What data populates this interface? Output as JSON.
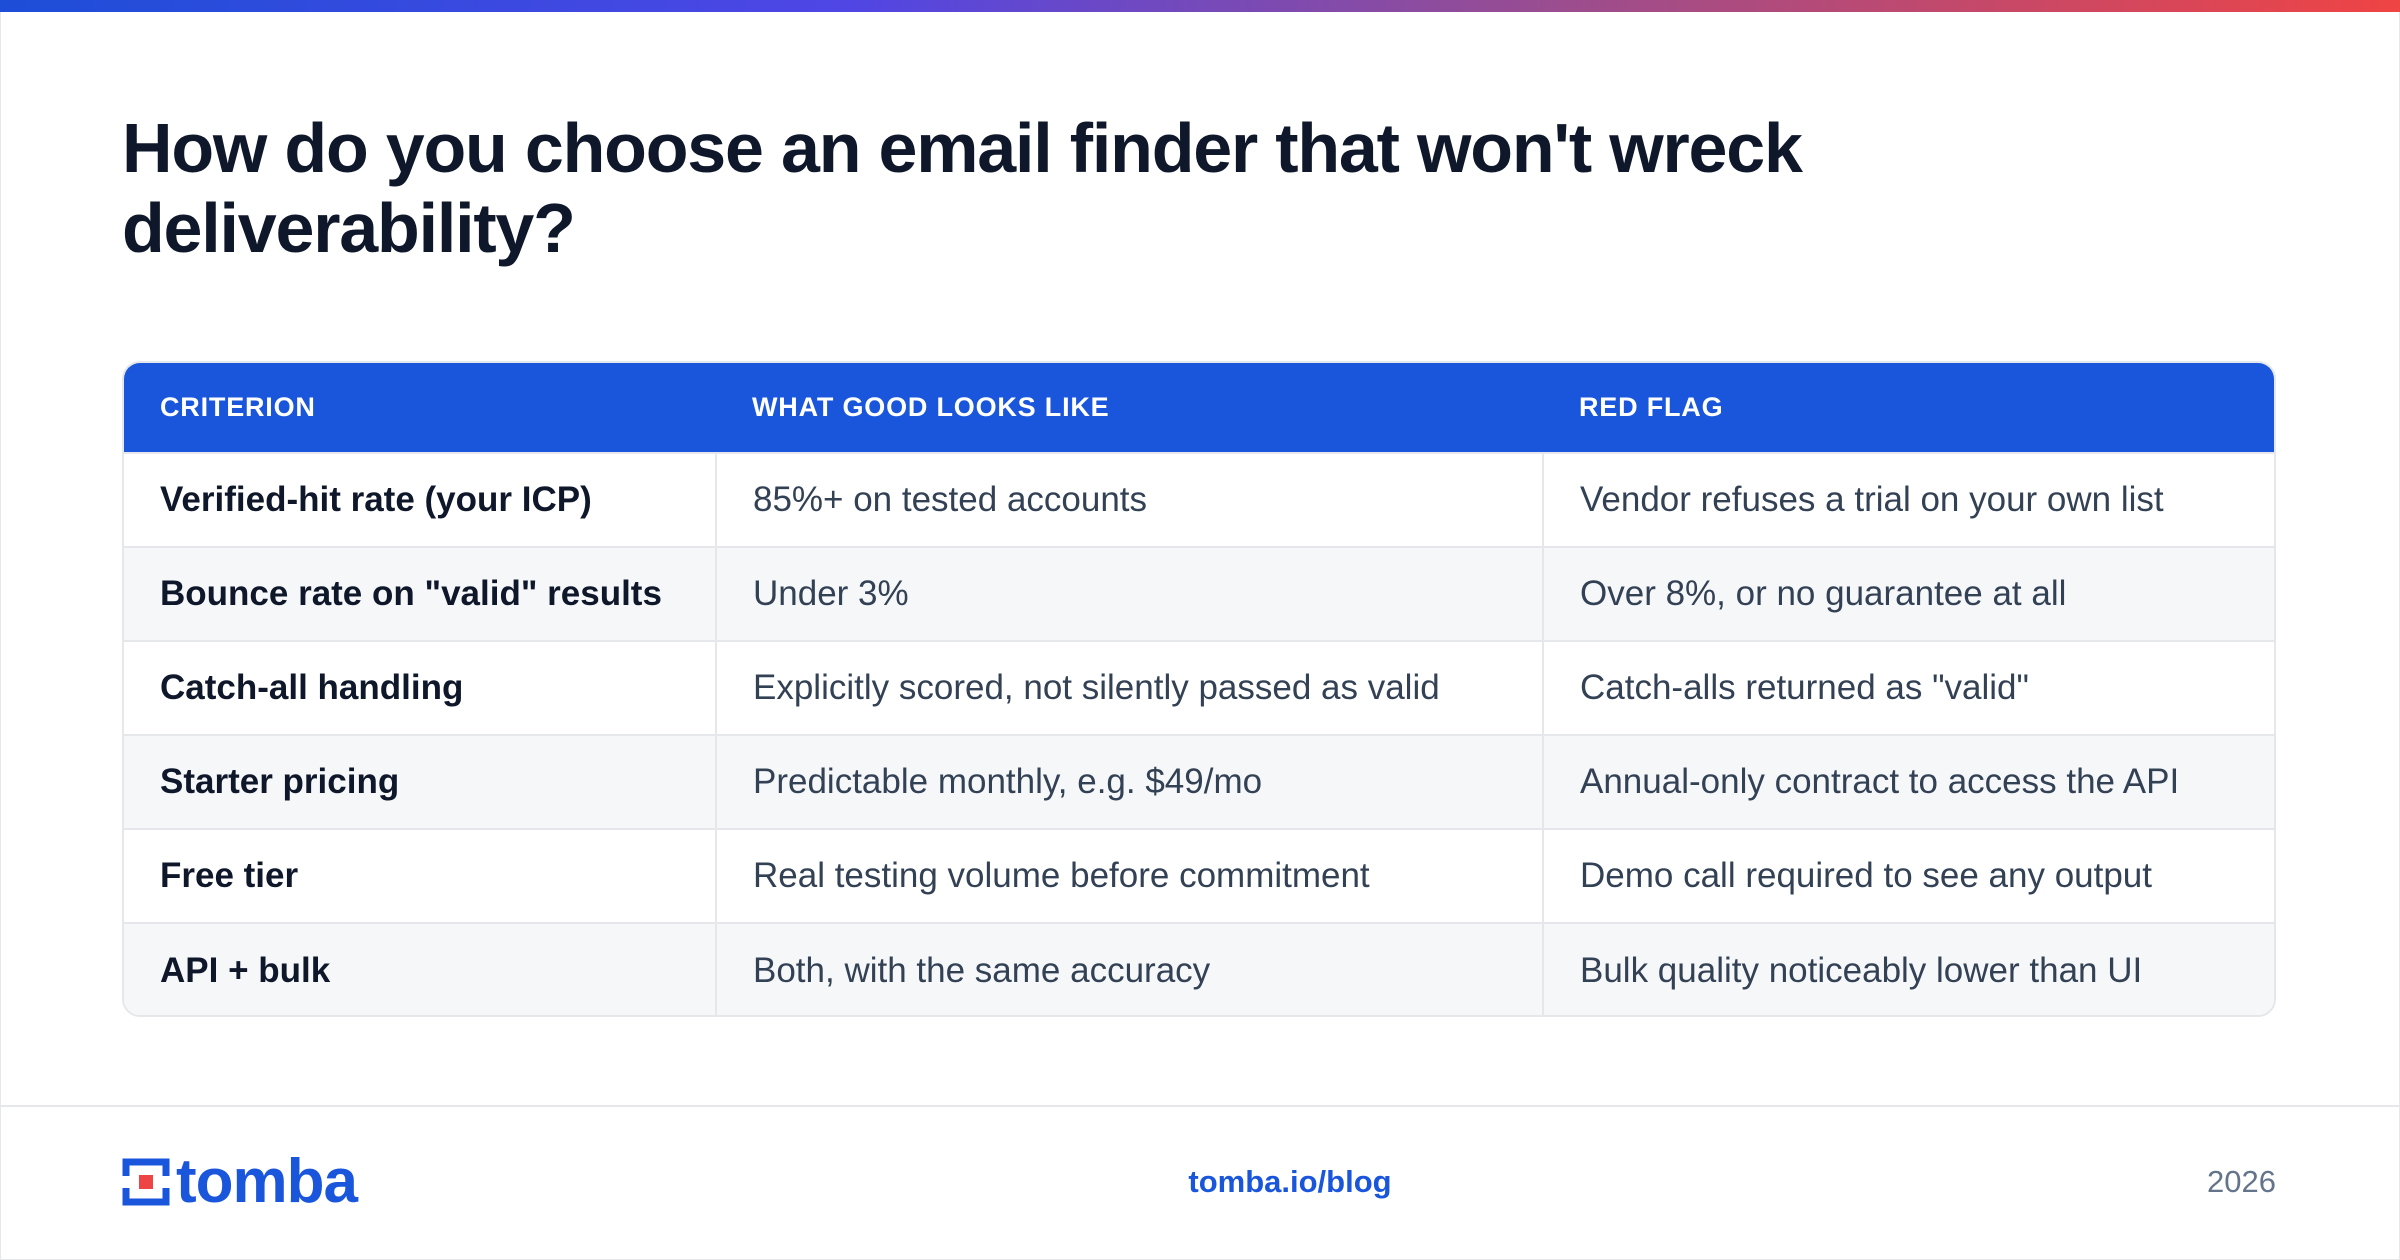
{
  "title": "How do you choose an email finder that won't wreck deliverability?",
  "colors": {
    "accent_blue": "#1a56db",
    "heading": "#0f172a",
    "body_text": "#334155",
    "muted": "#64748b",
    "row_alt": "#f6f7f9",
    "border": "#e5e7eb",
    "gradient_start": "#1d4ed8",
    "gradient_end": "#ef4444"
  },
  "table": {
    "headers": [
      "CRITERION",
      "WHAT GOOD LOOKS LIKE",
      "RED FLAG"
    ],
    "rows": [
      {
        "criterion": "Verified-hit rate (your ICP)",
        "good": "85%+ on tested accounts",
        "red_flag": "Vendor refuses a trial on your own list"
      },
      {
        "criterion": "Bounce rate on \"valid\" results",
        "good": "Under 3%",
        "red_flag": "Over 8%, or no guarantee at all"
      },
      {
        "criterion": "Catch-all handling",
        "good": "Explicitly scored, not silently passed as valid",
        "red_flag": "Catch-alls returned as \"valid\""
      },
      {
        "criterion": "Starter pricing",
        "good": "Predictable monthly, e.g. $49/mo",
        "red_flag": "Annual-only contract to access the API"
      },
      {
        "criterion": "Free tier",
        "good": "Real testing volume before commitment",
        "red_flag": "Demo call required to see any output"
      },
      {
        "criterion": "API + bulk",
        "good": "Both, with the same accuracy",
        "red_flag": "Bulk quality noticeably lower than UI"
      }
    ]
  },
  "footer": {
    "logo_text": "tomba",
    "link": "tomba.io/blog",
    "year": "2026"
  }
}
